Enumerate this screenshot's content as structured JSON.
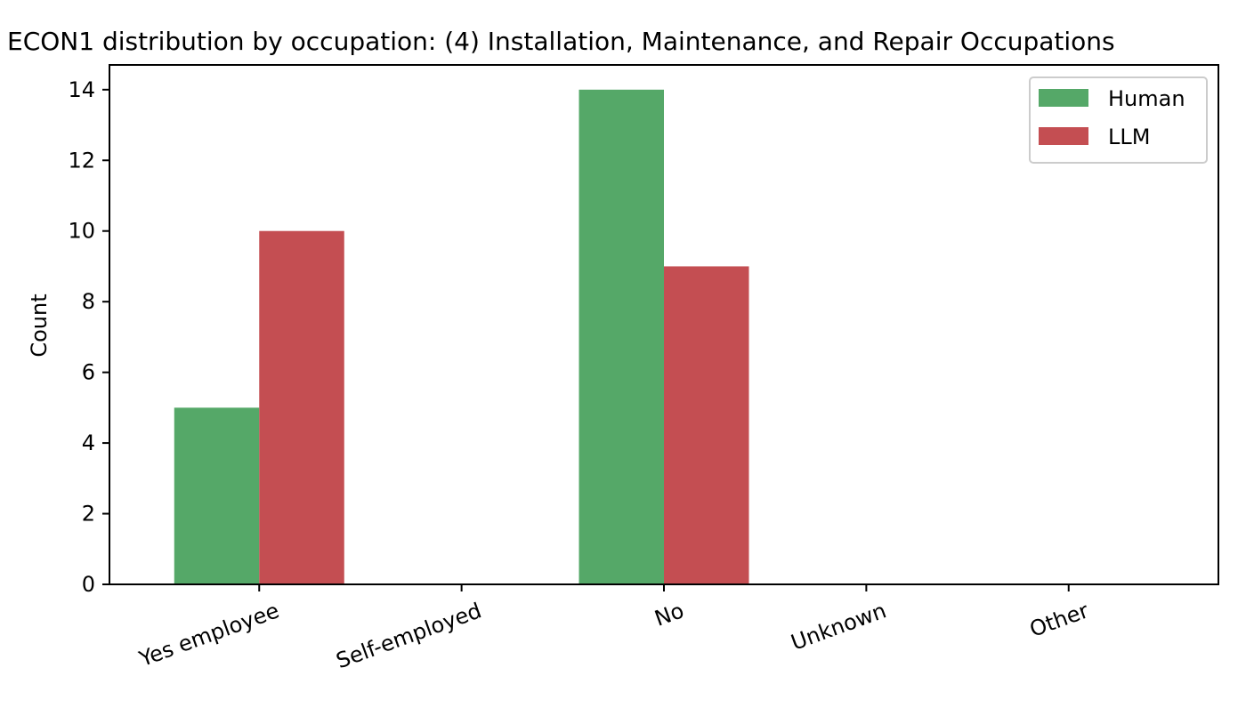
{
  "chart_data": {
    "type": "bar",
    "title": "ECON1 distribution by occupation: (4) Installation, Maintenance, and Repair Occupations",
    "xlabel": "",
    "ylabel": "Count",
    "categories": [
      "Yes employee",
      "Self-employed",
      "No",
      "Unknown",
      "Other"
    ],
    "series": [
      {
        "name": "Human",
        "color": "#55a868",
        "values": [
          5,
          0,
          14,
          0,
          0
        ]
      },
      {
        "name": "LLM",
        "color": "#c44e52",
        "values": [
          10,
          0,
          9,
          0,
          0
        ]
      }
    ],
    "ylim": [
      0,
      14.7
    ],
    "yticks": [
      0,
      2,
      4,
      6,
      8,
      10,
      12,
      14
    ],
    "grid": false,
    "legend_position": "top-right"
  }
}
